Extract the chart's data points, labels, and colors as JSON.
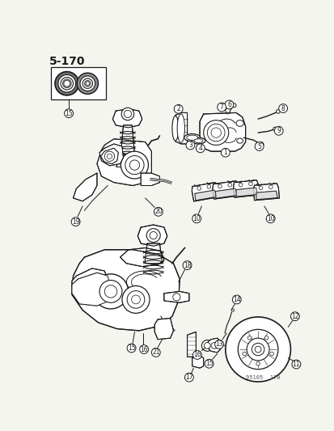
{
  "title": "5-170",
  "bg_color": "#f5f5f0",
  "line_color": "#1a1a1a",
  "fig_width": 4.14,
  "fig_height": 5.33,
  "dpi": 100,
  "watermark": "95105  170",
  "lw": 0.7
}
